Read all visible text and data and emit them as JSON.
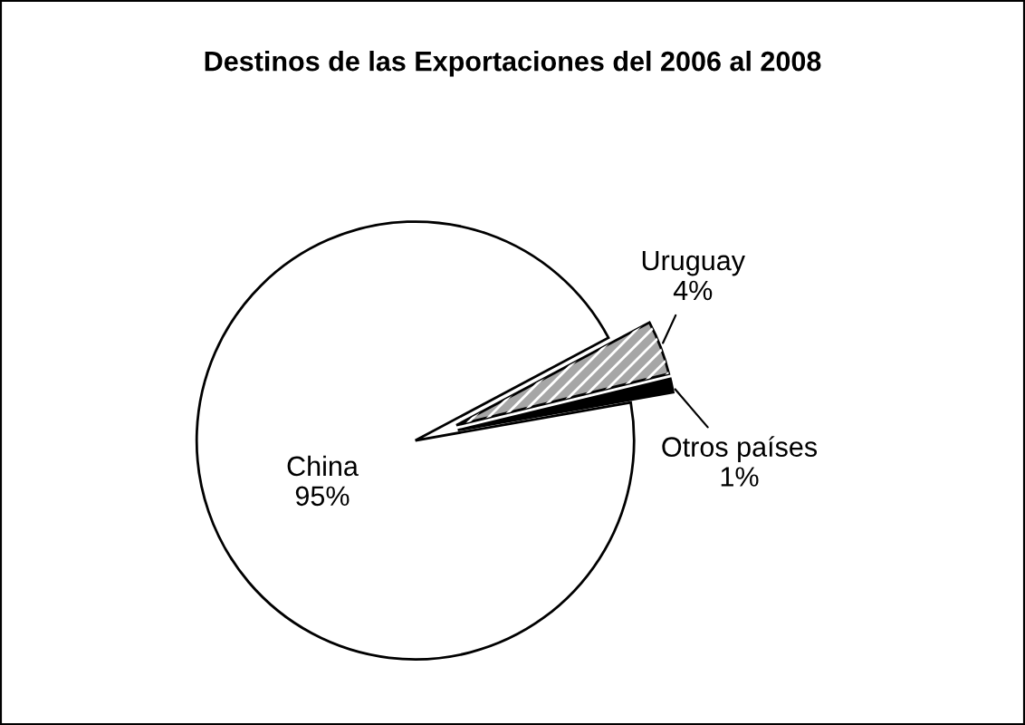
{
  "chart_data": {
    "type": "pie",
    "title": "Destinos de las Exportaciones del 2006 al 2008",
    "categories": [
      "China",
      "Uruguay",
      "Otros países"
    ],
    "values": [
      95,
      4,
      1
    ],
    "value_labels": [
      "95%",
      "4%",
      "1%"
    ],
    "colors": [
      "#ffffff",
      "#a6a6a6",
      "#000000"
    ]
  }
}
